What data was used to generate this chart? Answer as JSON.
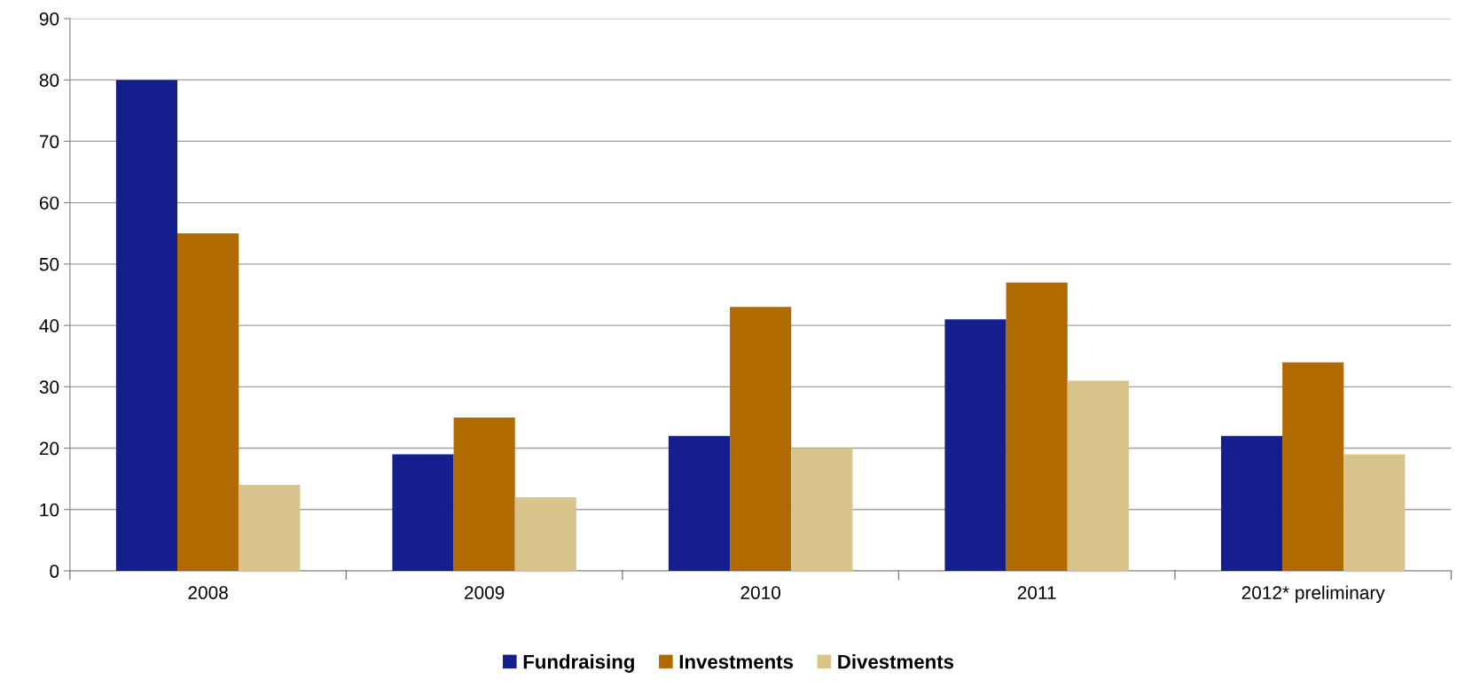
{
  "chart_data": {
    "type": "bar",
    "categories": [
      "2008",
      "2009",
      "2010",
      "2011",
      "2012* preliminary"
    ],
    "series": [
      {
        "name": "Fundraising",
        "color": "#141e8c",
        "values": [
          80,
          19,
          22,
          41,
          22
        ]
      },
      {
        "name": "Investments",
        "color": "#b06a00",
        "values": [
          55,
          25,
          43,
          47,
          34
        ]
      },
      {
        "name": "Divestments",
        "color": "#d8c48a",
        "values": [
          14,
          12,
          20,
          31,
          19
        ]
      }
    ],
    "ylim": [
      0,
      90
    ],
    "yticks": [
      0,
      10,
      20,
      30,
      40,
      50,
      60,
      70,
      80,
      90
    ],
    "grid": "y",
    "legend": "bottom"
  }
}
